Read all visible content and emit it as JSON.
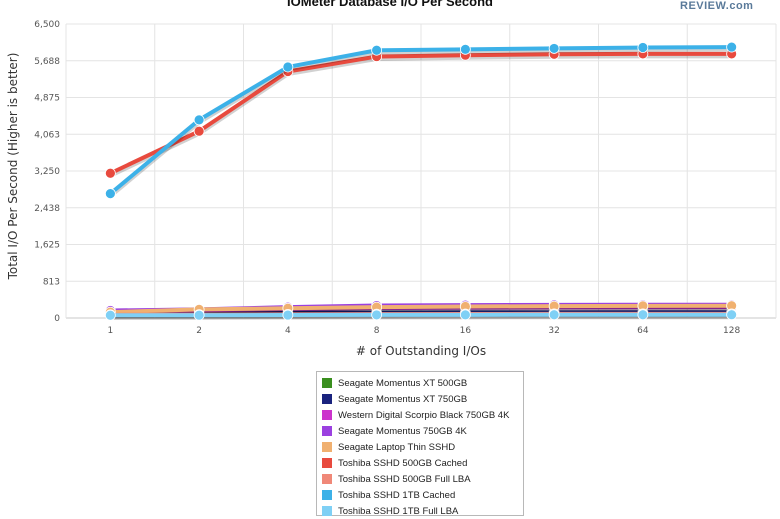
{
  "header": {
    "logo_text": "REVIEW.com"
  },
  "chart_data": {
    "type": "line",
    "title": "IOMeter Database I/O Per Second",
    "xlabel": "# of Outstanding I/Os",
    "ylabel": "Total I/O Per Second (Higher is better)",
    "categories": [
      "1",
      "2",
      "4",
      "8",
      "16",
      "32",
      "64",
      "128"
    ],
    "yticks": [
      "0",
      "813",
      "1,625",
      "2,438",
      "3,250",
      "4,063",
      "4,875",
      "5,688",
      "6,500"
    ],
    "ylim": [
      0,
      6500
    ],
    "grid": true,
    "legend_position": "bottom",
    "series": [
      {
        "name": "Seagate Momentus XT 500GB",
        "color": "#3a8f1f",
        "values": [
          95,
          100,
          110,
          115,
          118,
          120,
          120,
          121
        ]
      },
      {
        "name": "Seagate Momentus XT 750GB",
        "color": "#1a237e",
        "values": [
          100,
          105,
          115,
          120,
          123,
          125,
          126,
          126
        ]
      },
      {
        "name": "Western Digital Scorpio Black 750GB 4K",
        "color": "#cc33cc",
        "values": [
          150,
          170,
          200,
          220,
          230,
          235,
          238,
          240
        ]
      },
      {
        "name": "Seagate Momentus 750GB 4K",
        "color": "#9b40e0",
        "values": [
          165,
          190,
          240,
          275,
          285,
          290,
          292,
          294
        ]
      },
      {
        "name": "Seagate Laptop Thin SSHD",
        "color": "#f0b070",
        "values": [
          130,
          190,
          215,
          240,
          255,
          262,
          268,
          272
        ]
      },
      {
        "name": "Toshiba SSHD 500GB Cached",
        "color": "#e84a3e",
        "values": [
          3200,
          4130,
          5450,
          5780,
          5810,
          5830,
          5840,
          5840
        ]
      },
      {
        "name": "Toshiba SSHD 500GB Full LBA",
        "color": "#f08878",
        "values": [
          70,
          75,
          80,
          85,
          88,
          90,
          90,
          92
        ]
      },
      {
        "name": "Toshiba SSHD 1TB Cached",
        "color": "#3cb1e8",
        "values": [
          2750,
          4380,
          5550,
          5920,
          5940,
          5960,
          5980,
          5990
        ]
      },
      {
        "name": "Toshiba SSHD 1TB Full LBA",
        "color": "#7fd0f5",
        "values": [
          60,
          62,
          65,
          68,
          70,
          72,
          72,
          73
        ]
      }
    ]
  }
}
